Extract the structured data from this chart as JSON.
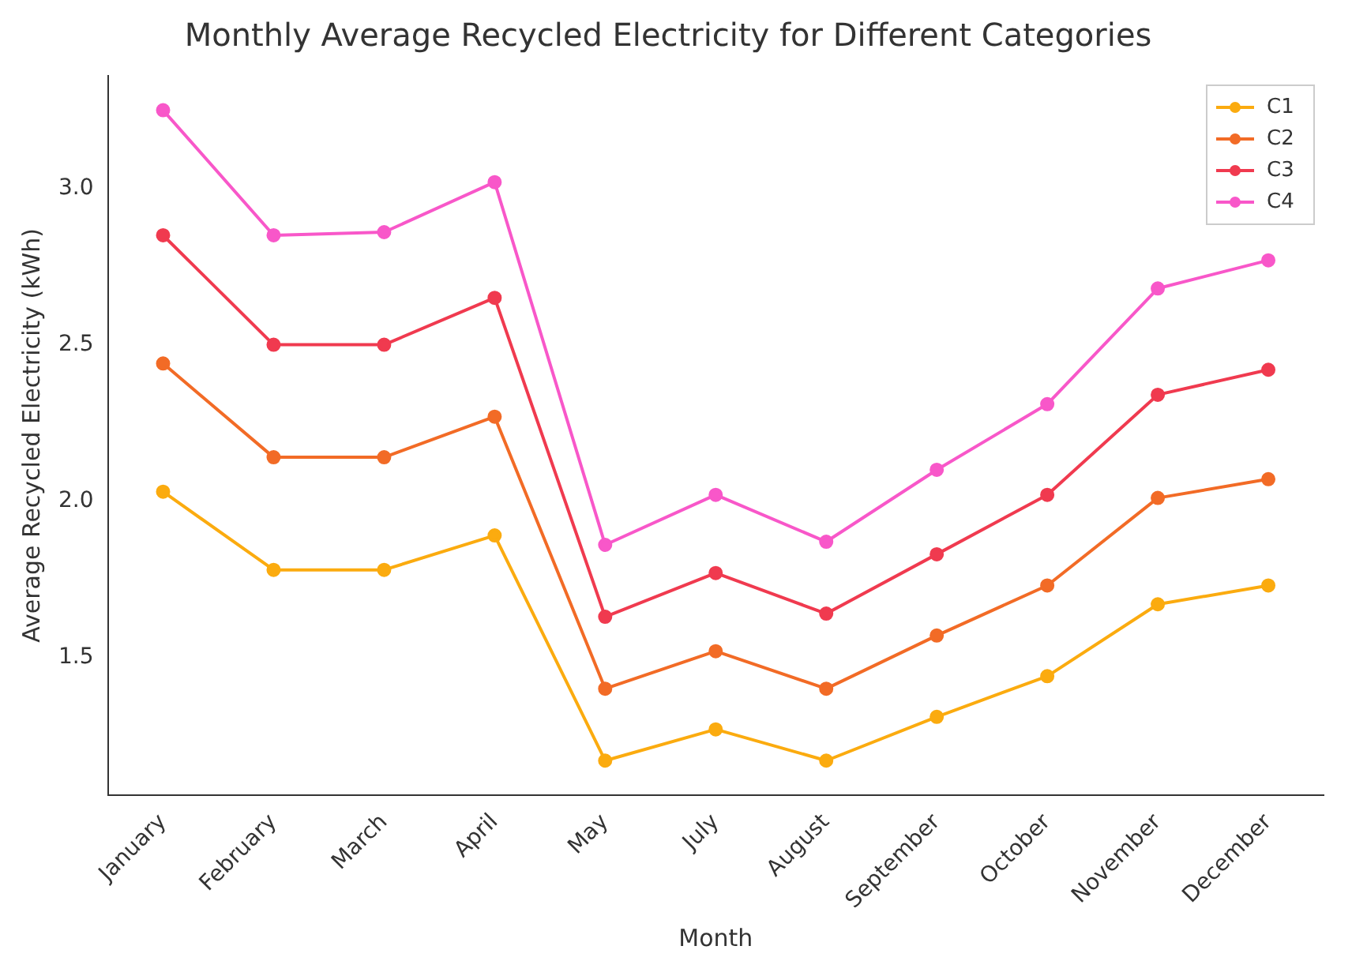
{
  "chart_data": {
    "type": "line",
    "title": "Monthly Average Recycled Electricity for Different Categories",
    "xlabel": "Month",
    "ylabel": "Average Recycled Electricity (kWh)",
    "categories": [
      "January",
      "February",
      "March",
      "April",
      "May",
      "July",
      "August",
      "September",
      "October",
      "November",
      "December"
    ],
    "series": [
      {
        "name": "C1",
        "color": "#fbab0f",
        "values": [
          2.03,
          1.78,
          1.78,
          1.89,
          1.17,
          1.27,
          1.17,
          1.31,
          1.44,
          1.67,
          1.73
        ]
      },
      {
        "name": "C2",
        "color": "#f26b26",
        "values": [
          2.44,
          2.14,
          2.14,
          2.27,
          1.4,
          1.52,
          1.4,
          1.57,
          1.73,
          2.01,
          2.07
        ]
      },
      {
        "name": "C3",
        "color": "#f03a4f",
        "values": [
          2.85,
          2.5,
          2.5,
          2.65,
          1.63,
          1.77,
          1.64,
          1.83,
          2.02,
          2.34,
          2.42
        ]
      },
      {
        "name": "C4",
        "color": "#f857c9",
        "values": [
          3.25,
          2.85,
          2.86,
          3.02,
          1.86,
          2.02,
          1.87,
          2.1,
          2.31,
          2.68,
          2.77
        ]
      }
    ],
    "ylim": [
      1.06,
      3.36
    ],
    "yticks": [
      1.5,
      {
        "value": 2,
        "label": "2.0"
      },
      2.5,
      {
        "value": 3,
        "label": "3.0"
      }
    ],
    "grid": false,
    "legend": "top right",
    "marker": "circle",
    "line_style": "solid"
  }
}
